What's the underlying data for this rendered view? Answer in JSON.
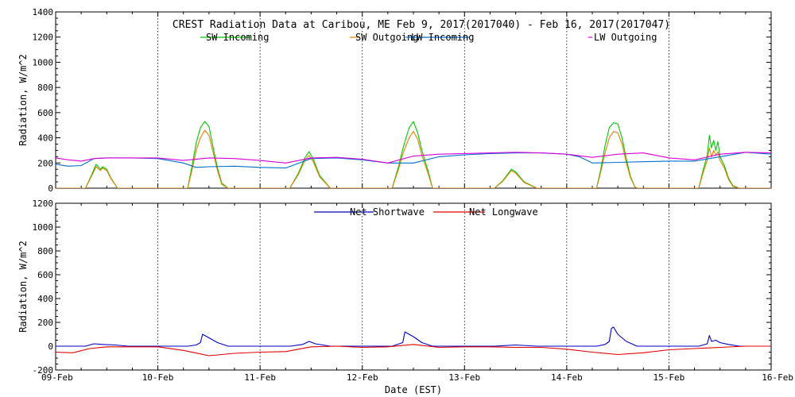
{
  "chart_data": [
    {
      "type": "line",
      "title": "CREST Radiation Data at Caribou, ME   Feb  9, 2017(2017040) - Feb 16, 2017(2017047)",
      "ylabel": "Radiation, W/m^2",
      "xlabel": "",
      "ylim": [
        0,
        1400
      ],
      "yticks": [
        0,
        200,
        400,
        600,
        800,
        1000,
        1200,
        1400
      ],
      "xlim": [
        "2017-02-09",
        "2017-02-16"
      ],
      "x_ticks": [
        "09-Feb",
        "10-Feb",
        "11-Feb",
        "12-Feb",
        "13-Feb",
        "14-Feb",
        "15-Feb",
        "16-Feb"
      ],
      "grid": true,
      "legend_position": "top",
      "series": [
        {
          "name": "SW Incoming",
          "color": "#00c800",
          "x": [
            "2017-02-09 00:00",
            "2017-02-09 07:00",
            "2017-02-09 08:30",
            "2017-02-09 09:30",
            "2017-02-09 10:30",
            "2017-02-09 11:00",
            "2017-02-09 12:00",
            "2017-02-09 13:00",
            "2017-02-09 14:30",
            "2017-02-09 17:00",
            "2017-02-10 07:00",
            "2017-02-10 08:00",
            "2017-02-10 09:00",
            "2017-02-10 10:00",
            "2017-02-10 11:00",
            "2017-02-10 12:00",
            "2017-02-10 13:00",
            "2017-02-10 14:00",
            "2017-02-10 15:00",
            "2017-02-10 16:30",
            "2017-02-11 07:00",
            "2017-02-11 09:00",
            "2017-02-11 10:30",
            "2017-02-11 11:30",
            "2017-02-11 12:30",
            "2017-02-11 14:00",
            "2017-02-11 16:30",
            "2017-02-12 07:00",
            "2017-02-12 08:30",
            "2017-02-12 09:30",
            "2017-02-12 11:00",
            "2017-02-12 12:00",
            "2017-02-12 13:00",
            "2017-02-12 14:00",
            "2017-02-12 15:30",
            "2017-02-12 16:30",
            "2017-02-13 07:00",
            "2017-02-13 09:00",
            "2017-02-13 11:00",
            "2017-02-13 12:00",
            "2017-02-13 14:00",
            "2017-02-13 17:00",
            "2017-02-14 07:00",
            "2017-02-14 08:00",
            "2017-02-14 09:00",
            "2017-02-14 10:00",
            "2017-02-14 11:00",
            "2017-02-14 12:00",
            "2017-02-14 13:00",
            "2017-02-14 14:00",
            "2017-02-14 15:00",
            "2017-02-14 16:00",
            "2017-02-14 16:30",
            "2017-02-15 07:00",
            "2017-02-15 08:00",
            "2017-02-15 09:00",
            "2017-02-15 09:30",
            "2017-02-15 10:00",
            "2017-02-15 10:30",
            "2017-02-15 11:00",
            "2017-02-15 11:30",
            "2017-02-15 12:00",
            "2017-02-15 13:00",
            "2017-02-15 14:00",
            "2017-02-15 15:00",
            "2017-02-15 16:30",
            "2017-02-16 00:00"
          ],
          "values": [
            0,
            0,
            110,
            190,
            150,
            170,
            150,
            80,
            0,
            0,
            0,
            170,
            360,
            480,
            530,
            490,
            320,
            160,
            40,
            0,
            0,
            120,
            240,
            290,
            230,
            100,
            0,
            0,
            170,
            310,
            480,
            530,
            440,
            300,
            130,
            0,
            0,
            60,
            150,
            130,
            50,
            0,
            0,
            150,
            340,
            480,
            520,
            510,
            400,
            230,
            90,
            10,
            0,
            0,
            140,
            260,
            420,
            320,
            380,
            300,
            370,
            250,
            180,
            80,
            20,
            0,
            0
          ]
        },
        {
          "name": "SW Outgoing",
          "color": "#e08000",
          "x": [
            "2017-02-09 00:00",
            "2017-02-09 07:00",
            "2017-02-09 08:30",
            "2017-02-09 09:30",
            "2017-02-09 10:30",
            "2017-02-09 11:00",
            "2017-02-09 12:00",
            "2017-02-09 13:00",
            "2017-02-09 14:30",
            "2017-02-09 17:00",
            "2017-02-10 07:00",
            "2017-02-10 08:00",
            "2017-02-10 09:00",
            "2017-02-10 10:00",
            "2017-02-10 11:00",
            "2017-02-10 12:00",
            "2017-02-10 13:00",
            "2017-02-10 14:00",
            "2017-02-10 15:00",
            "2017-02-10 16:30",
            "2017-02-11 07:00",
            "2017-02-11 09:00",
            "2017-02-11 10:30",
            "2017-02-11 11:30",
            "2017-02-11 12:30",
            "2017-02-11 14:00",
            "2017-02-11 16:30",
            "2017-02-12 07:00",
            "2017-02-12 08:30",
            "2017-02-12 09:30",
            "2017-02-12 11:00",
            "2017-02-12 12:00",
            "2017-02-12 13:00",
            "2017-02-12 14:00",
            "2017-02-12 15:30",
            "2017-02-12 16:30",
            "2017-02-13 07:00",
            "2017-02-13 09:00",
            "2017-02-13 11:00",
            "2017-02-13 12:00",
            "2017-02-13 14:00",
            "2017-02-13 17:00",
            "2017-02-14 07:00",
            "2017-02-14 08:00",
            "2017-02-14 09:00",
            "2017-02-14 10:00",
            "2017-02-14 11:00",
            "2017-02-14 12:00",
            "2017-02-14 13:00",
            "2017-02-14 14:00",
            "2017-02-14 15:00",
            "2017-02-14 16:00",
            "2017-02-14 16:30",
            "2017-02-15 07:00",
            "2017-02-15 08:00",
            "2017-02-15 09:00",
            "2017-02-15 09:30",
            "2017-02-15 10:00",
            "2017-02-15 10:30",
            "2017-02-15 11:00",
            "2017-02-15 11:30",
            "2017-02-15 12:00",
            "2017-02-15 13:00",
            "2017-02-15 14:00",
            "2017-02-15 15:00",
            "2017-02-15 16:30",
            "2017-02-16 00:00"
          ],
          "values": [
            0,
            0,
            100,
            170,
            140,
            160,
            140,
            75,
            0,
            0,
            0,
            140,
            300,
            400,
            460,
            420,
            280,
            140,
            30,
            0,
            0,
            110,
            220,
            260,
            210,
            90,
            0,
            0,
            150,
            270,
            400,
            450,
            390,
            260,
            110,
            0,
            0,
            55,
            140,
            120,
            45,
            0,
            0,
            130,
            280,
            400,
            450,
            440,
            350,
            200,
            80,
            10,
            0,
            0,
            120,
            220,
            320,
            250,
            300,
            260,
            290,
            220,
            160,
            70,
            15,
            0,
            0
          ]
        },
        {
          "name": "LW Incoming",
          "color": "#0070d0",
          "x": [
            "2017-02-09 00:00",
            "2017-02-09 03:00",
            "2017-02-09 06:00",
            "2017-02-09 09:00",
            "2017-02-09 12:00",
            "2017-02-09 18:00",
            "2017-02-10 00:00",
            "2017-02-10 06:00",
            "2017-02-10 09:00",
            "2017-02-10 12:00",
            "2017-02-10 18:00",
            "2017-02-11 00:00",
            "2017-02-11 06:00",
            "2017-02-11 12:00",
            "2017-02-11 18:00",
            "2017-02-12 00:00",
            "2017-02-12 06:00",
            "2017-02-12 12:00",
            "2017-02-12 18:00",
            "2017-02-13 00:00",
            "2017-02-13 06:00",
            "2017-02-13 12:00",
            "2017-02-13 18:00",
            "2017-02-14 00:00",
            "2017-02-14 03:00",
            "2017-02-14 06:00",
            "2017-02-14 12:00",
            "2017-02-14 18:00",
            "2017-02-15 00:00",
            "2017-02-15 06:00",
            "2017-02-15 12:00",
            "2017-02-15 18:00",
            "2017-02-16 00:00"
          ],
          "values": [
            190,
            175,
            180,
            235,
            240,
            240,
            235,
            200,
            165,
            170,
            175,
            165,
            160,
            235,
            240,
            225,
            200,
            200,
            250,
            265,
            275,
            280,
            280,
            270,
            250,
            200,
            205,
            210,
            215,
            215,
            250,
            285,
            270
          ]
        },
        {
          "name": "LW Outgoing",
          "color": "#d800d8",
          "x": [
            "2017-02-09 00:00",
            "2017-02-09 03:00",
            "2017-02-09 06:00",
            "2017-02-09 09:00",
            "2017-02-09 12:00",
            "2017-02-09 18:00",
            "2017-02-10 00:00",
            "2017-02-10 06:00",
            "2017-02-10 12:00",
            "2017-02-10 18:00",
            "2017-02-11 00:00",
            "2017-02-11 06:00",
            "2017-02-11 12:00",
            "2017-02-11 18:00",
            "2017-02-12 00:00",
            "2017-02-12 06:00",
            "2017-02-12 12:00",
            "2017-02-12 18:00",
            "2017-02-13 00:00",
            "2017-02-13 06:00",
            "2017-02-13 12:00",
            "2017-02-13 18:00",
            "2017-02-14 00:00",
            "2017-02-14 06:00",
            "2017-02-14 12:00",
            "2017-02-14 18:00",
            "2017-02-15 00:00",
            "2017-02-15 06:00",
            "2017-02-15 12:00",
            "2017-02-15 18:00",
            "2017-02-16 00:00"
          ],
          "values": [
            240,
            225,
            215,
            235,
            240,
            240,
            240,
            220,
            240,
            235,
            220,
            200,
            240,
            245,
            230,
            200,
            255,
            270,
            275,
            280,
            285,
            280,
            270,
            245,
            270,
            280,
            240,
            225,
            270,
            285,
            280
          ]
        }
      ]
    },
    {
      "type": "line",
      "title": "",
      "ylabel": "Radiation, W/m^2",
      "xlabel": "Date (EST)",
      "ylim": [
        -200,
        1200
      ],
      "yticks": [
        -200,
        0,
        200,
        400,
        600,
        800,
        1000,
        1200
      ],
      "xlim": [
        "2017-02-09",
        "2017-02-16"
      ],
      "x_ticks": [
        "09-Feb",
        "10-Feb",
        "11-Feb",
        "12-Feb",
        "13-Feb",
        "14-Feb",
        "15-Feb",
        "16-Feb"
      ],
      "grid": true,
      "legend_position": "top",
      "series": [
        {
          "name": "Net Shortwave",
          "color": "#0000c0",
          "x": [
            "2017-02-09 00:00",
            "2017-02-09 07:00",
            "2017-02-09 09:00",
            "2017-02-09 11:00",
            "2017-02-09 14:00",
            "2017-02-09 17:00",
            "2017-02-10 07:00",
            "2017-02-10 09:00",
            "2017-02-10 10:00",
            "2017-02-10 10:30",
            "2017-02-10 12:00",
            "2017-02-10 14:00",
            "2017-02-10 16:30",
            "2017-02-11 07:00",
            "2017-02-11 10:00",
            "2017-02-11 11:30",
            "2017-02-11 13:00",
            "2017-02-11 16:30",
            "2017-02-12 07:00",
            "2017-02-12 09:30",
            "2017-02-12 10:00",
            "2017-02-12 11:00",
            "2017-02-12 12:00",
            "2017-02-12 14:00",
            "2017-02-12 16:30",
            "2017-02-13 07:00",
            "2017-02-13 12:00",
            "2017-02-13 17:00",
            "2017-02-14 07:00",
            "2017-02-14 09:00",
            "2017-02-14 10:00",
            "2017-02-14 10:30",
            "2017-02-14 11:00",
            "2017-02-14 12:00",
            "2017-02-14 14:00",
            "2017-02-14 16:30",
            "2017-02-15 07:00",
            "2017-02-15 09:00",
            "2017-02-15 09:30",
            "2017-02-15 10:00",
            "2017-02-15 11:00",
            "2017-02-15 12:00",
            "2017-02-15 14:00",
            "2017-02-15 16:30",
            "2017-02-16 00:00"
          ],
          "values": [
            0,
            0,
            20,
            15,
            10,
            0,
            0,
            10,
            30,
            100,
            70,
            30,
            0,
            0,
            15,
            40,
            20,
            0,
            0,
            30,
            120,
            100,
            80,
            30,
            0,
            0,
            10,
            0,
            0,
            15,
            40,
            150,
            160,
            100,
            40,
            0,
            0,
            20,
            90,
            40,
            50,
            30,
            15,
            0,
            0
          ]
        },
        {
          "name": "Net Longwave",
          "color": "#e00000",
          "x": [
            "2017-02-09 00:00",
            "2017-02-09 04:00",
            "2017-02-09 08:00",
            "2017-02-09 12:00",
            "2017-02-09 18:00",
            "2017-02-10 00:00",
            "2017-02-10 06:00",
            "2017-02-10 12:00",
            "2017-02-10 18:00",
            "2017-02-11 00:00",
            "2017-02-11 06:00",
            "2017-02-11 12:00",
            "2017-02-11 18:00",
            "2017-02-12 00:00",
            "2017-02-12 06:00",
            "2017-02-12 12:00",
            "2017-02-12 18:00",
            "2017-02-13 00:00",
            "2017-02-13 06:00",
            "2017-02-13 12:00",
            "2017-02-13 18:00",
            "2017-02-14 00:00",
            "2017-02-14 06:00",
            "2017-02-14 12:00",
            "2017-02-14 18:00",
            "2017-02-15 00:00",
            "2017-02-15 06:00",
            "2017-02-15 12:00",
            "2017-02-15 18:00",
            "2017-02-16 00:00"
          ],
          "values": [
            -50,
            -55,
            -20,
            -5,
            -5,
            -5,
            -35,
            -80,
            -60,
            -50,
            -45,
            -5,
            0,
            -10,
            -5,
            15,
            -10,
            -5,
            -5,
            -10,
            -10,
            -25,
            -50,
            -70,
            -55,
            -30,
            -20,
            -10,
            0,
            0
          ]
        }
      ]
    }
  ]
}
